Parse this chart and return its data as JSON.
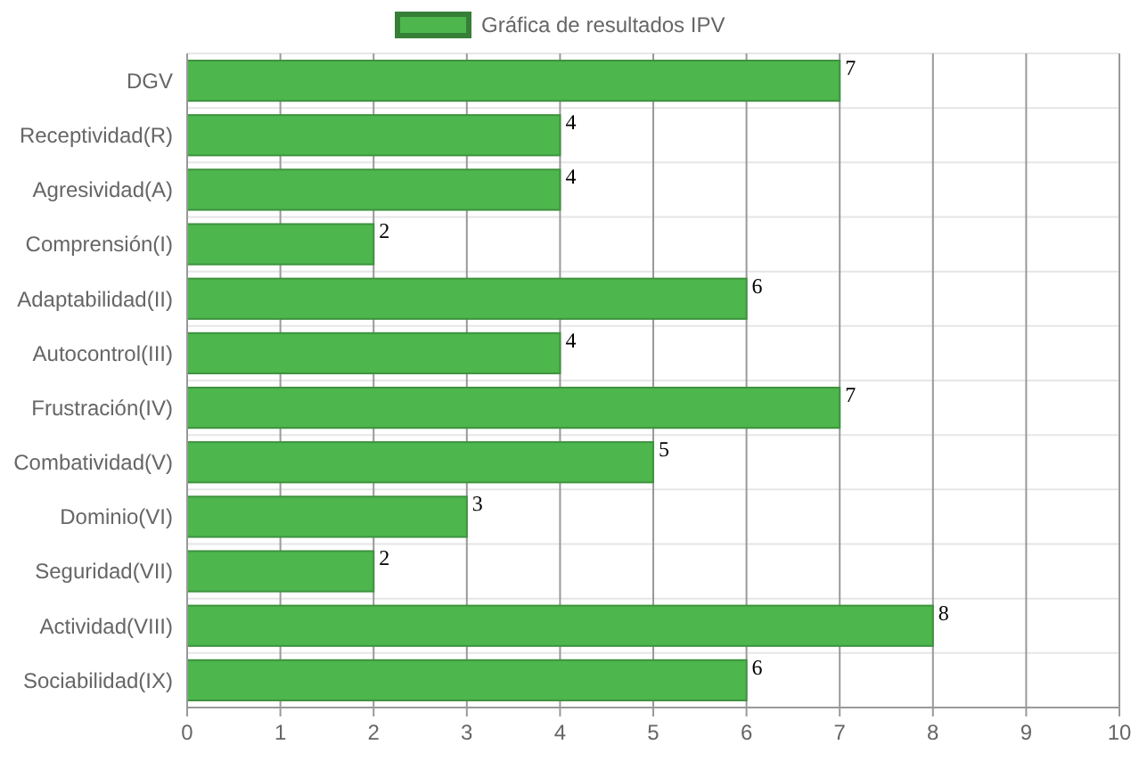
{
  "chart_data": {
    "type": "bar",
    "orientation": "horizontal",
    "categories": [
      "DGV",
      "Receptividad(R)",
      "Agresividad(A)",
      "Comprensión(I)",
      "Adaptabilidad(II)",
      "Autocontrol(III)",
      "Frustración(IV)",
      "Combatividad(V)",
      "Dominio(VI)",
      "Seguridad(VII)",
      "Actividad(VIII)",
      "Sociabilidad(IX)"
    ],
    "series": [
      {
        "name": "Gráfica de resultados IPV",
        "color": "#4db64d",
        "values": [
          7,
          4,
          4,
          2,
          6,
          4,
          7,
          5,
          3,
          2,
          8,
          6
        ]
      }
    ],
    "xlim": [
      0,
      10
    ],
    "xticks": [
      0,
      1,
      2,
      3,
      4,
      5,
      6,
      7,
      8,
      9,
      10
    ],
    "grid": true,
    "legend": "top",
    "data_labels": true
  }
}
